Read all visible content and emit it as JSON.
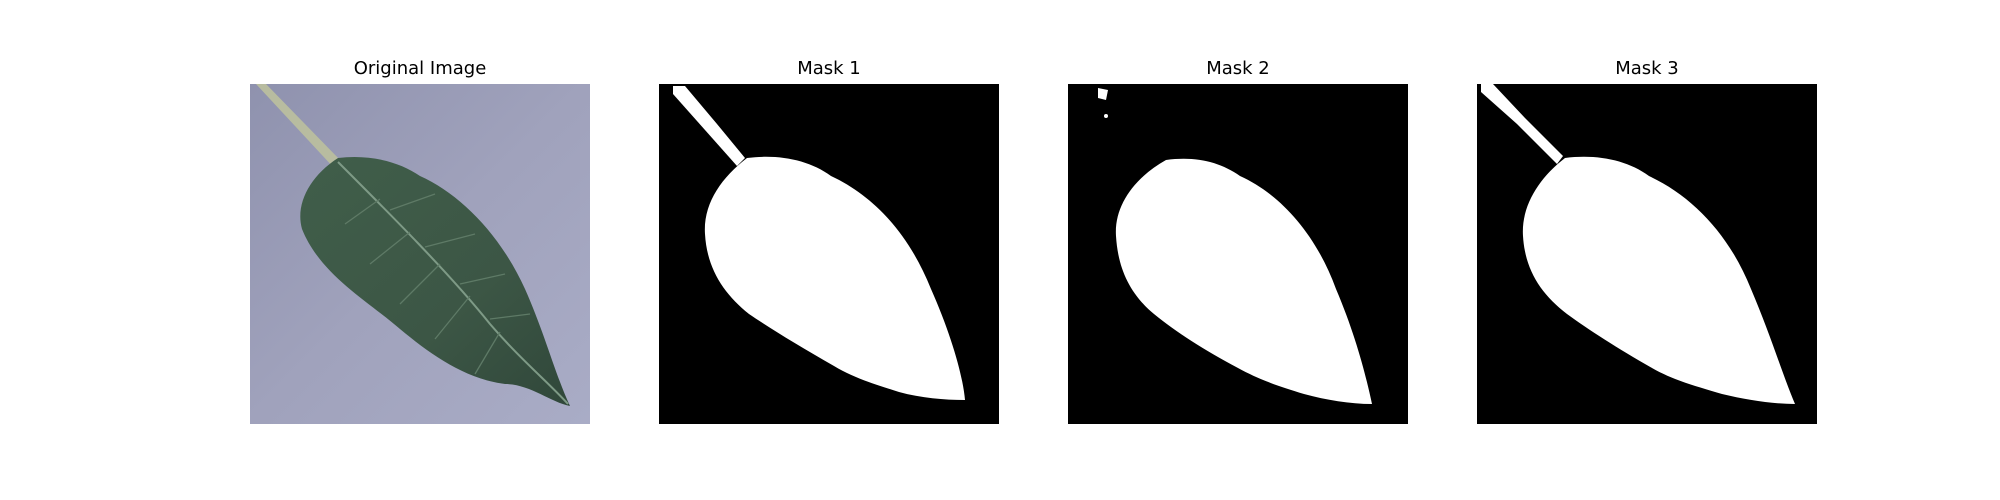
{
  "figure": {
    "panels": [
      {
        "title": "Original Image",
        "kind": "photo",
        "description_icon": "leaf-photo"
      },
      {
        "title": "Mask 1",
        "kind": "mask",
        "description_icon": "leaf-mask"
      },
      {
        "title": "Mask 2",
        "kind": "mask",
        "description_icon": "leaf-mask"
      },
      {
        "title": "Mask 3",
        "kind": "mask",
        "description_icon": "leaf-mask"
      }
    ],
    "colors": {
      "background_photo": "#9a9cb6",
      "leaf": "#3f5a48",
      "mask_bg": "#000000",
      "mask_fg": "#ffffff"
    }
  }
}
